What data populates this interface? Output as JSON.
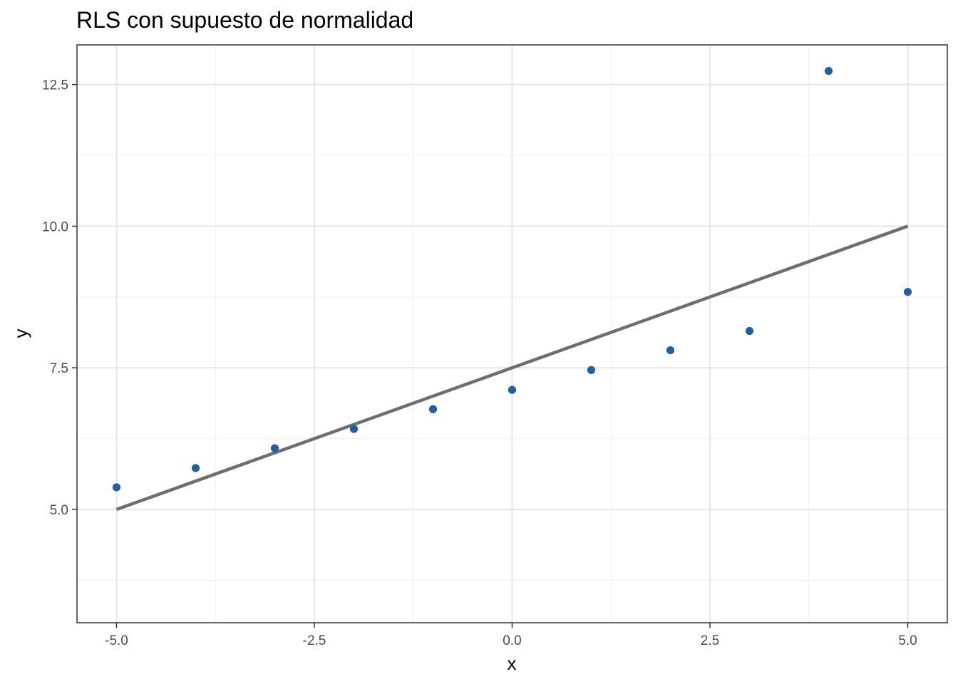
{
  "chart_data": {
    "type": "scatter",
    "title": "RLS con supuesto de normalidad",
    "xlabel": "x",
    "ylabel": "y",
    "xlim": [
      -5.5,
      5.5
    ],
    "ylim": [
      3.0,
      13.2
    ],
    "x_ticks": [
      -5.0,
      -2.5,
      0.0,
      2.5,
      5.0
    ],
    "x_tick_labels": [
      "-5.0",
      "-2.5",
      "0.0",
      "2.5",
      "5.0"
    ],
    "y_ticks": [
      5.0,
      7.5,
      10.0,
      12.5
    ],
    "y_tick_labels": [
      "5.0",
      "7.5",
      "10.0",
      "12.5"
    ],
    "x_minor_ticks": [
      -3.75,
      -1.25,
      1.25,
      3.75
    ],
    "y_minor_ticks": [
      3.75,
      6.25,
      8.75,
      11.25
    ],
    "grid": true,
    "series": [
      {
        "type": "scatter",
        "color": "#1f5fa6",
        "x": [
          -5,
          -4,
          -3,
          -2,
          -1,
          0,
          1,
          2,
          3,
          4,
          5
        ],
        "y": [
          5.39,
          5.73,
          6.08,
          6.42,
          6.77,
          7.11,
          7.46,
          7.81,
          8.15,
          12.74,
          8.84
        ]
      },
      {
        "type": "line",
        "color": "#6e6e6e",
        "x": [
          -5,
          5
        ],
        "y": [
          5.0,
          10.0
        ]
      }
    ]
  }
}
